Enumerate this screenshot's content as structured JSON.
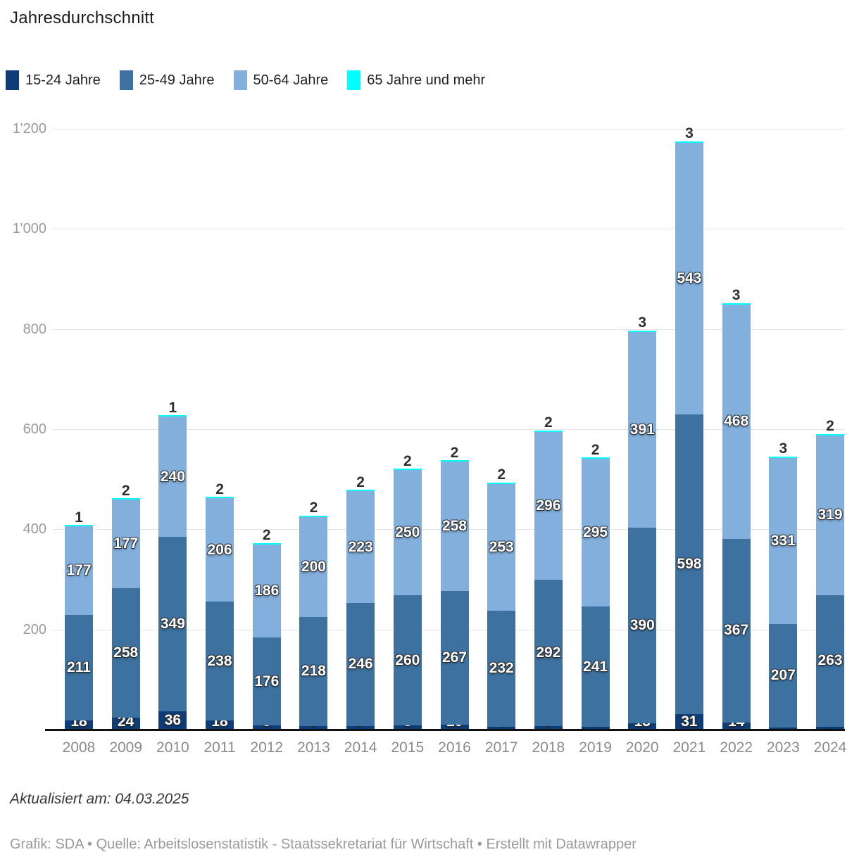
{
  "title": "Jahresdurchschnitt",
  "legend": [
    {
      "label": "15-24 Jahre",
      "color": "#0e3c78"
    },
    {
      "label": "25-49 Jahre",
      "color": "#3d72a0"
    },
    {
      "label": "50-64 Jahre",
      "color": "#82afdb"
    },
    {
      "label": "65 Jahre und mehr",
      "color": "#00ffff"
    }
  ],
  "chart_data": {
    "type": "bar",
    "stacked": true,
    "title": "Jahresdurchschnitt",
    "xlabel": "",
    "ylabel": "",
    "categories": [
      "2008",
      "2009",
      "2010",
      "2011",
      "2012",
      "2013",
      "2014",
      "2015",
      "2016",
      "2017",
      "2018",
      "2019",
      "2020",
      "2021",
      "2022",
      "2023",
      "2024"
    ],
    "series": [
      {
        "name": "15-24 Jahre",
        "values": [
          18,
          24,
          36,
          18,
          8,
          7,
          7,
          8,
          10,
          6,
          7,
          5,
          13,
          31,
          14,
          4,
          6
        ]
      },
      {
        "name": "25-49 Jahre",
        "values": [
          211,
          258,
          349,
          238,
          176,
          218,
          246,
          260,
          267,
          232,
          292,
          241,
          390,
          598,
          367,
          207,
          263
        ]
      },
      {
        "name": "50-64 Jahre",
        "values": [
          177,
          177,
          240,
          206,
          186,
          200,
          223,
          250,
          258,
          253,
          296,
          295,
          391,
          543,
          468,
          331,
          319
        ]
      },
      {
        "name": "65 Jahre und mehr",
        "values": [
          1,
          2,
          1,
          2,
          2,
          2,
          2,
          2,
          2,
          2,
          2,
          2,
          3,
          3,
          3,
          3,
          2
        ]
      }
    ],
    "ylim": [
      0,
      1200
    ],
    "yticks": [
      200,
      400,
      600,
      800,
      1000,
      1200
    ],
    "ytick_labels": [
      "200",
      "400",
      "600",
      "800",
      "1'000",
      "1'200"
    ],
    "grid": true,
    "legend_position": "top"
  },
  "footer": {
    "updated": "Aktualisiert am: 04.03.2025",
    "byline": "Grafik: SDA • Quelle: Arbeitslosenstatistik - Staatssekretariat für Wirtschaft • Erstellt mit Datawrapper"
  }
}
